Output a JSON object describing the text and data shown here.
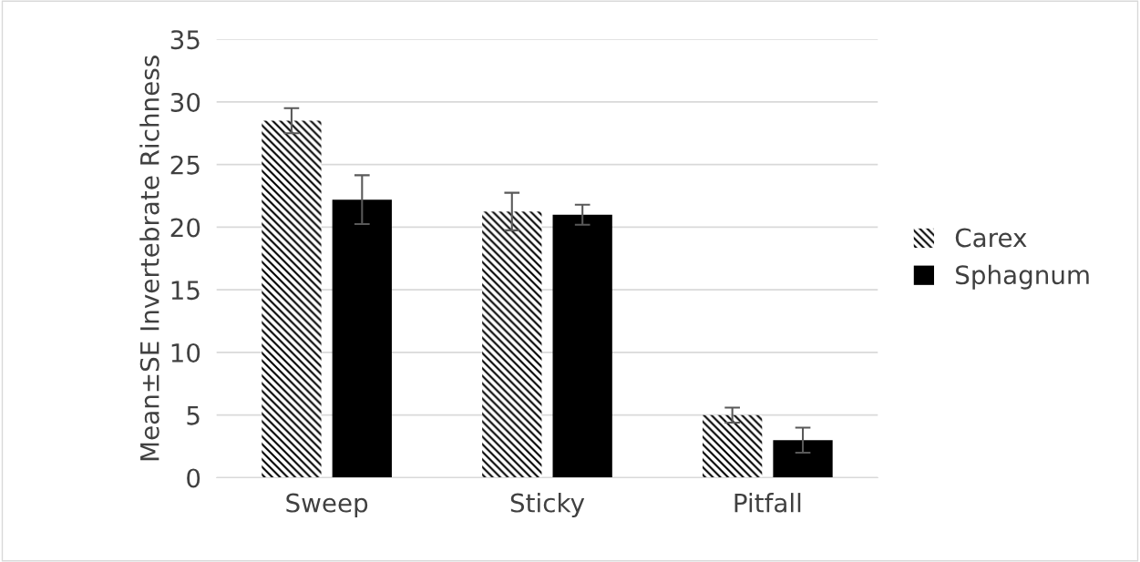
{
  "chart_data": {
    "type": "bar",
    "ylabel": "Mean±SE Invertebrate Richness",
    "categories": [
      "Sweep",
      "Sticky",
      "Pitfall"
    ],
    "series": [
      {
        "name": "Carex",
        "color": "#ffffff",
        "values": [
          28.5,
          21.25,
          5.0
        ],
        "errors": [
          1.0,
          1.5,
          0.6
        ]
      },
      {
        "name": "Sphagnum",
        "color": "#000000",
        "values": [
          22.2,
          21.0,
          3.0
        ],
        "errors": [
          1.95,
          0.8,
          1.0
        ]
      }
    ],
    "ylim": [
      0,
      35
    ],
    "yticks": [
      0,
      5,
      10,
      15,
      20,
      25,
      30,
      35
    ],
    "grid": "y",
    "legend": "right"
  }
}
